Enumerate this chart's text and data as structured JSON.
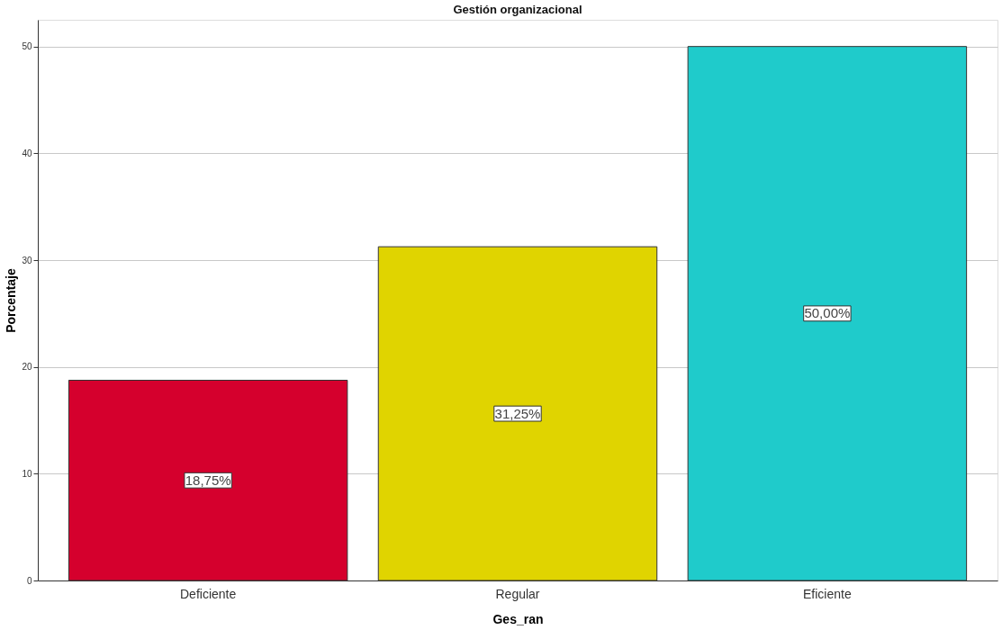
{
  "chart_data": {
    "type": "bar",
    "title": "Gestión organizacional",
    "xlabel": "Ges_ran",
    "ylabel": "Porcentaje",
    "categories": [
      "Deficiente",
      "Regular",
      "Eficiente"
    ],
    "values": [
      18.75,
      31.25,
      50
    ],
    "colors": [
      "#d5002d",
      "#e0d400",
      "#1fcbcb"
    ],
    "value_labels": [
      "18,75%",
      "31,25%",
      "50,00%"
    ],
    "ylim": [
      0,
      52.5
    ],
    "yticks": [
      0,
      10,
      20,
      30,
      40,
      50
    ],
    "grid": "y"
  }
}
